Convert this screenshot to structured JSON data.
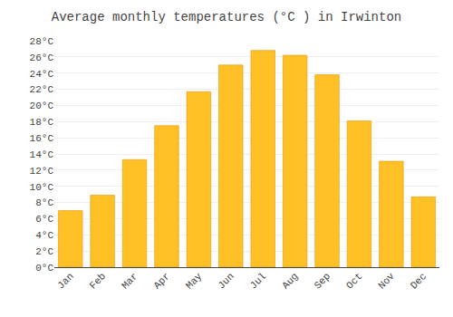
{
  "chart_data": {
    "type": "bar",
    "title": "Average monthly temperatures (°C ) in Irwinton",
    "categories": [
      "Jan",
      "Feb",
      "Mar",
      "Apr",
      "May",
      "Jun",
      "Jul",
      "Aug",
      "Sep",
      "Oct",
      "Nov",
      "Dec"
    ],
    "values": [
      7.0,
      8.9,
      13.3,
      17.5,
      21.7,
      25.0,
      26.8,
      26.2,
      23.8,
      18.1,
      13.1,
      8.7
    ],
    "color": "#FFC125",
    "ylim": [
      0,
      28
    ],
    "yticks": [
      {
        "value": 0,
        "label": "0°C"
      },
      {
        "value": 2,
        "label": "2°C"
      },
      {
        "value": 4,
        "label": "4°C"
      },
      {
        "value": 6,
        "label": "6°C"
      },
      {
        "value": 8,
        "label": "8°C"
      },
      {
        "value": 10,
        "label": "10°C"
      },
      {
        "value": 12,
        "label": "12°C"
      },
      {
        "value": 14,
        "label": "14°C"
      },
      {
        "value": 16,
        "label": "16°C"
      },
      {
        "value": 18,
        "label": "18°C"
      },
      {
        "value": 20,
        "label": "20°C"
      },
      {
        "value": 22,
        "label": "22°C"
      },
      {
        "value": 24,
        "label": "24°C"
      },
      {
        "value": 26,
        "label": "26°C"
      },
      {
        "value": 28,
        "label": "28°C"
      }
    ],
    "grid": true
  }
}
